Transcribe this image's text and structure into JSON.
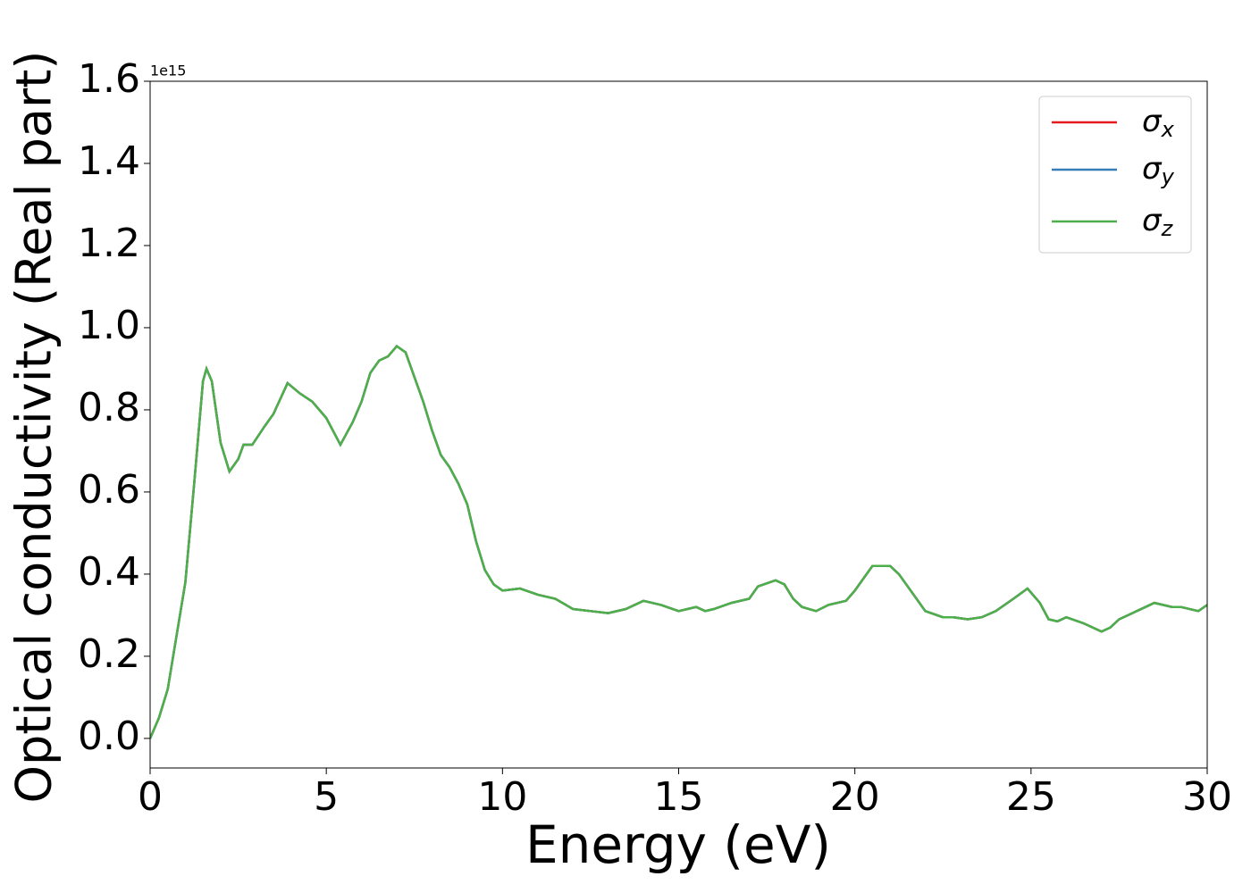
{
  "chart_data": {
    "type": "line",
    "xlabel": "Energy (eV)",
    "ylabel": "Optical conductivity (Real part)",
    "y_offset_label": "1e15",
    "x": [
      0,
      0.25,
      0.5,
      0.75,
      1.0,
      1.25,
      1.5,
      1.6,
      1.75,
      2.0,
      2.25,
      2.5,
      2.65,
      2.9,
      3.25,
      3.5,
      3.9,
      4.25,
      4.6,
      5.0,
      5.4,
      5.75,
      6.0,
      6.25,
      6.5,
      6.75,
      7.0,
      7.25,
      7.5,
      7.75,
      8.0,
      8.25,
      8.5,
      8.75,
      9.0,
      9.25,
      9.5,
      9.75,
      10.0,
      10.5,
      11.0,
      11.5,
      12.0,
      12.5,
      13.0,
      13.5,
      14.0,
      14.5,
      15.0,
      15.25,
      15.5,
      15.75,
      16.0,
      16.5,
      17.0,
      17.25,
      17.75,
      18.0,
      18.25,
      18.5,
      18.9,
      19.25,
      19.75,
      20.0,
      20.25,
      20.5,
      21.0,
      21.25,
      21.5,
      21.75,
      22.0,
      22.5,
      22.8,
      23.2,
      23.6,
      24.0,
      24.5,
      24.9,
      25.25,
      25.5,
      25.75,
      26.0,
      26.5,
      27.0,
      27.25,
      27.5,
      28.0,
      28.5,
      29.0,
      29.25,
      29.75,
      30.0
    ],
    "series": [
      {
        "name": "σx",
        "color": "#e41a1c",
        "values": [
          0.0,
          0.05,
          0.12,
          0.25,
          0.38,
          0.62,
          0.87,
          0.9,
          0.87,
          0.72,
          0.65,
          0.68,
          0.715,
          0.715,
          0.76,
          0.79,
          0.865,
          0.84,
          0.82,
          0.78,
          0.715,
          0.77,
          0.82,
          0.89,
          0.92,
          0.93,
          0.955,
          0.94,
          0.88,
          0.82,
          0.75,
          0.69,
          0.66,
          0.62,
          0.57,
          0.48,
          0.41,
          0.375,
          0.36,
          0.365,
          0.35,
          0.34,
          0.315,
          0.31,
          0.305,
          0.315,
          0.335,
          0.325,
          0.31,
          0.315,
          0.32,
          0.31,
          0.315,
          0.33,
          0.34,
          0.37,
          0.385,
          0.375,
          0.34,
          0.32,
          0.31,
          0.325,
          0.335,
          0.36,
          0.39,
          0.42,
          0.42,
          0.4,
          0.37,
          0.34,
          0.31,
          0.295,
          0.295,
          0.29,
          0.295,
          0.31,
          0.34,
          0.365,
          0.33,
          0.29,
          0.285,
          0.295,
          0.28,
          0.26,
          0.27,
          0.29,
          0.31,
          0.33,
          0.32,
          0.32,
          0.31,
          0.325
        ]
      },
      {
        "name": "σy",
        "color": "#377eb8",
        "values": [
          0.0,
          0.05,
          0.12,
          0.25,
          0.38,
          0.62,
          0.87,
          0.9,
          0.87,
          0.72,
          0.65,
          0.68,
          0.715,
          0.715,
          0.76,
          0.79,
          0.865,
          0.84,
          0.82,
          0.78,
          0.715,
          0.77,
          0.82,
          0.89,
          0.92,
          0.93,
          0.955,
          0.94,
          0.88,
          0.82,
          0.75,
          0.69,
          0.66,
          0.62,
          0.57,
          0.48,
          0.41,
          0.375,
          0.36,
          0.365,
          0.35,
          0.34,
          0.315,
          0.31,
          0.305,
          0.315,
          0.335,
          0.325,
          0.31,
          0.315,
          0.32,
          0.31,
          0.315,
          0.33,
          0.34,
          0.37,
          0.385,
          0.375,
          0.34,
          0.32,
          0.31,
          0.325,
          0.335,
          0.36,
          0.39,
          0.42,
          0.42,
          0.4,
          0.37,
          0.34,
          0.31,
          0.295,
          0.295,
          0.29,
          0.295,
          0.31,
          0.34,
          0.365,
          0.33,
          0.29,
          0.285,
          0.295,
          0.28,
          0.26,
          0.27,
          0.29,
          0.31,
          0.33,
          0.32,
          0.32,
          0.31,
          0.325
        ]
      },
      {
        "name": "σz",
        "color": "#4daf4a",
        "values": [
          0.0,
          0.05,
          0.12,
          0.25,
          0.38,
          0.62,
          0.87,
          0.9,
          0.87,
          0.72,
          0.65,
          0.68,
          0.715,
          0.715,
          0.76,
          0.79,
          0.865,
          0.84,
          0.82,
          0.78,
          0.715,
          0.77,
          0.82,
          0.89,
          0.92,
          0.93,
          0.955,
          0.94,
          0.88,
          0.82,
          0.75,
          0.69,
          0.66,
          0.62,
          0.57,
          0.48,
          0.41,
          0.375,
          0.36,
          0.365,
          0.35,
          0.34,
          0.315,
          0.31,
          0.305,
          0.315,
          0.335,
          0.325,
          0.31,
          0.315,
          0.32,
          0.31,
          0.315,
          0.33,
          0.34,
          0.37,
          0.385,
          0.375,
          0.34,
          0.32,
          0.31,
          0.325,
          0.335,
          0.36,
          0.39,
          0.42,
          0.42,
          0.4,
          0.37,
          0.34,
          0.31,
          0.295,
          0.295,
          0.29,
          0.295,
          0.31,
          0.34,
          0.365,
          0.33,
          0.29,
          0.285,
          0.295,
          0.28,
          0.26,
          0.27,
          0.29,
          0.31,
          0.33,
          0.32,
          0.32,
          0.31,
          0.325
        ]
      }
    ],
    "xlim": [
      0,
      30
    ],
    "xticks": [
      0,
      5,
      10,
      15,
      20,
      25,
      30
    ],
    "ylim": [
      -0.072,
      1.6
    ],
    "yticks": [
      {
        "value": 0,
        "label": "0.0"
      },
      {
        "value": 0.2,
        "label": "0.2"
      },
      {
        "value": 0.4,
        "label": "0.4"
      },
      {
        "value": 0.6,
        "label": "0.6"
      },
      {
        "value": 0.8,
        "label": "0.8"
      },
      {
        "value": 1.0,
        "label": "1.0"
      },
      {
        "value": 1.2,
        "label": "1.2"
      },
      {
        "value": 1.4,
        "label": "1.4"
      },
      {
        "value": 1.6,
        "label": "1.6"
      }
    ],
    "grid": false,
    "legend": "upper right"
  }
}
